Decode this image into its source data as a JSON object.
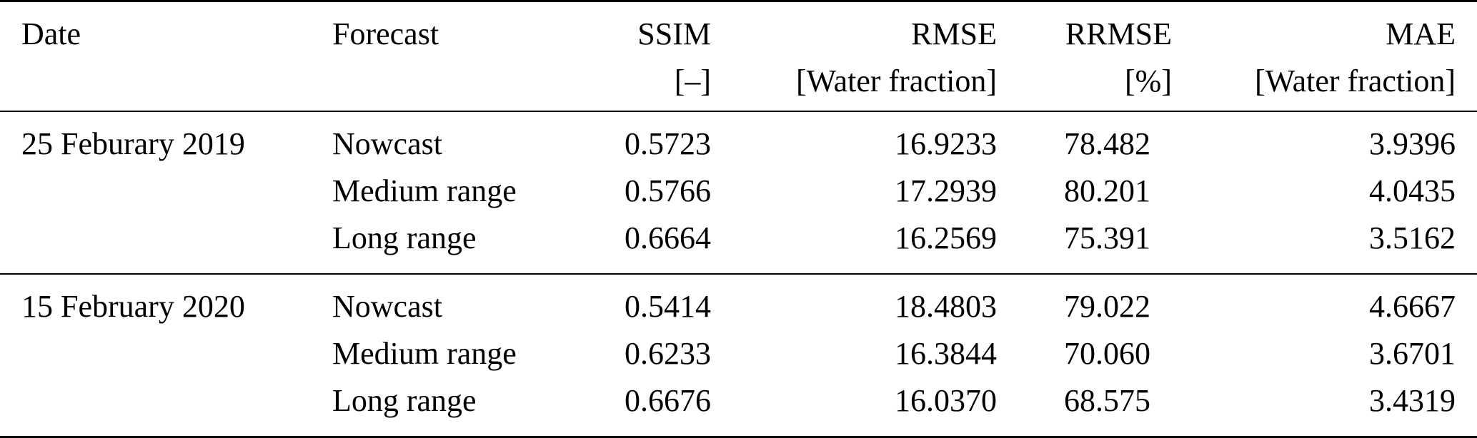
{
  "table": {
    "columns": [
      {
        "label": "Date",
        "unit": ""
      },
      {
        "label": "Forecast",
        "unit": ""
      },
      {
        "label": "SSIM",
        "unit": "[–]"
      },
      {
        "label": "RMSE",
        "unit": "[Water fraction]"
      },
      {
        "label": "RRMSE",
        "unit": "[%]"
      },
      {
        "label": "MAE",
        "unit": "[Water fraction]"
      }
    ],
    "groups": [
      {
        "date": "25 Feburary 2019",
        "rows": [
          {
            "forecast": "Nowcast",
            "ssim": "0.5723",
            "rmse": "16.9233",
            "rrmse": "78.482",
            "mae": "3.9396"
          },
          {
            "forecast": "Medium range",
            "ssim": "0.5766",
            "rmse": "17.2939",
            "rrmse": "80.201",
            "mae": "4.0435"
          },
          {
            "forecast": "Long range",
            "ssim": "0.6664",
            "rmse": "16.2569",
            "rrmse": "75.391",
            "mae": "3.5162"
          }
        ]
      },
      {
        "date": "15 February 2020",
        "rows": [
          {
            "forecast": "Nowcast",
            "ssim": "0.5414",
            "rmse": "18.4803",
            "rrmse": "79.022",
            "mae": "4.6667"
          },
          {
            "forecast": "Medium range",
            "ssim": "0.6233",
            "rmse": "16.3844",
            "rrmse": "70.060",
            "mae": "3.6701"
          },
          {
            "forecast": "Long range",
            "ssim": "0.6676",
            "rmse": "16.0370",
            "rrmse": "68.575",
            "mae": "3.4319"
          }
        ]
      }
    ],
    "colors": {
      "text": "#000000",
      "background": "#ffffff",
      "rule": "#000000"
    }
  }
}
